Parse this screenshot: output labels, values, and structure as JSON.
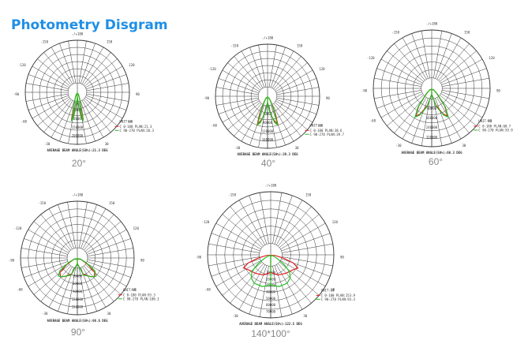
{
  "page": {
    "title": "Photometry Disgram"
  },
  "diagrams": [
    {
      "id": "d20",
      "caption": "20°",
      "avg_label": "AVERAGE BEAM ANGLE(50%):21.3 DEG",
      "unit": "UNIT:cd",
      "legend": [
        "C 0-180 PLAN:21.3",
        "C 90-270 PLAN:20.3"
      ],
      "ring_labels": [
        "50000",
        "100000",
        "150000",
        "200000"
      ],
      "shape_red": [
        [
          0,
          0.1
        ],
        [
          6,
          0.3
        ],
        [
          10,
          0.48
        ],
        [
          12,
          0.55
        ],
        [
          14,
          0.35
        ],
        [
          20,
          0.12
        ],
        [
          30,
          0.04
        ]
      ],
      "shape_green": [
        [
          0,
          0.1
        ],
        [
          6,
          0.32
        ],
        [
          9,
          0.5
        ],
        [
          11,
          0.57
        ],
        [
          13,
          0.38
        ],
        [
          18,
          0.15
        ],
        [
          30,
          0.04
        ]
      ]
    },
    {
      "id": "d40",
      "caption": "40°",
      "avg_label": "AVERAGE BEAM ANGLE(50%):39.3 DEG",
      "unit": "UNIT:cd",
      "legend": [
        "C 0-180 PLAN:38.6",
        "C 90-270 PLAN:39.7"
      ],
      "ring_labels": [
        "40000",
        "80000",
        "120000",
        "160000"
      ],
      "shape_red": [
        [
          0,
          0.12
        ],
        [
          10,
          0.36
        ],
        [
          16,
          0.5
        ],
        [
          20,
          0.57
        ],
        [
          24,
          0.38
        ],
        [
          32,
          0.12
        ],
        [
          40,
          0.04
        ]
      ],
      "shape_green": [
        [
          0,
          0.12
        ],
        [
          8,
          0.3
        ],
        [
          15,
          0.52
        ],
        [
          19,
          0.58
        ],
        [
          23,
          0.36
        ],
        [
          30,
          0.12
        ],
        [
          40,
          0.04
        ]
      ]
    },
    {
      "id": "d60",
      "caption": "60°",
      "avg_label": "AVERAGE BEAM ANGLE(50%):60.3 DEG",
      "unit": "UNIT:cd",
      "legend": [
        "C 0-180 PLAN:60.7",
        "C 90-270 PLAN:59.9"
      ],
      "ring_labels": [
        "80000",
        "160000",
        "240000",
        "320000"
      ],
      "shape_red": [
        [
          0,
          0.1
        ],
        [
          14,
          0.3
        ],
        [
          24,
          0.48
        ],
        [
          30,
          0.55
        ],
        [
          36,
          0.38
        ],
        [
          45,
          0.12
        ],
        [
          55,
          0.04
        ]
      ],
      "shape_green": [
        [
          0,
          0.1
        ],
        [
          14,
          0.32
        ],
        [
          24,
          0.5
        ],
        [
          30,
          0.57
        ],
        [
          36,
          0.4
        ],
        [
          45,
          0.14
        ],
        [
          55,
          0.04
        ]
      ]
    },
    {
      "id": "d90",
      "caption": "90°",
      "avg_label": "AVERAGE BEAM ANGLE(50%):96.6 DEG",
      "unit": "UNIT:cd",
      "legend": [
        "C 0-180 PLAN:93.3",
        "C 90-270 PLAN:100.3"
      ],
      "ring_labels": [
        "30000",
        "60000",
        "90000",
        "120000",
        "150000"
      ],
      "shape_red": [
        [
          0,
          0.1
        ],
        [
          20,
          0.3
        ],
        [
          35,
          0.4
        ],
        [
          42,
          0.44
        ],
        [
          50,
          0.4
        ],
        [
          58,
          0.22
        ],
        [
          70,
          0.06
        ]
      ],
      "shape_green": [
        [
          0,
          0.1
        ],
        [
          20,
          0.32
        ],
        [
          38,
          0.42
        ],
        [
          46,
          0.46
        ],
        [
          54,
          0.38
        ],
        [
          62,
          0.18
        ],
        [
          72,
          0.05
        ]
      ]
    },
    {
      "id": "d140",
      "caption": "140*100°",
      "avg_label": "AVERAGE BEAM ANGLE(50%):122.5 DEG",
      "unit": "UNIT:cd",
      "legend": [
        "C 0-180 PLAN:153.9",
        "C 90-270 PLAN:93.3"
      ],
      "ring_labels": [
        "10000",
        "20000",
        "30000",
        "40000",
        "50000",
        "60000",
        "70000"
      ],
      "shape_red": [
        [
          0,
          0.28
        ],
        [
          20,
          0.34
        ],
        [
          40,
          0.38
        ],
        [
          55,
          0.42
        ],
        [
          64,
          0.48
        ],
        [
          70,
          0.38
        ],
        [
          76,
          0.2
        ],
        [
          82,
          0.06
        ]
      ],
      "shape_green": [
        [
          0,
          0.48
        ],
        [
          15,
          0.52
        ],
        [
          30,
          0.52
        ],
        [
          40,
          0.48
        ],
        [
          48,
          0.4
        ],
        [
          54,
          0.26
        ],
        [
          60,
          0.12
        ],
        [
          66,
          0.04
        ]
      ]
    }
  ],
  "angle_labels": {
    "top": "-/+180",
    "left_upper": "-150",
    "right_upper": "150",
    "left_mid_upper": "-120",
    "right_mid_upper": "120",
    "left_mid": "-90",
    "right_mid": "90",
    "left_lower": "-60",
    "right_lower": "60",
    "left_bottom": "-30",
    "right_bottom": "30"
  },
  "colors": {
    "title": "#1f8fe6",
    "red": "#e02020",
    "green": "#22c022",
    "grid": "#333333"
  }
}
